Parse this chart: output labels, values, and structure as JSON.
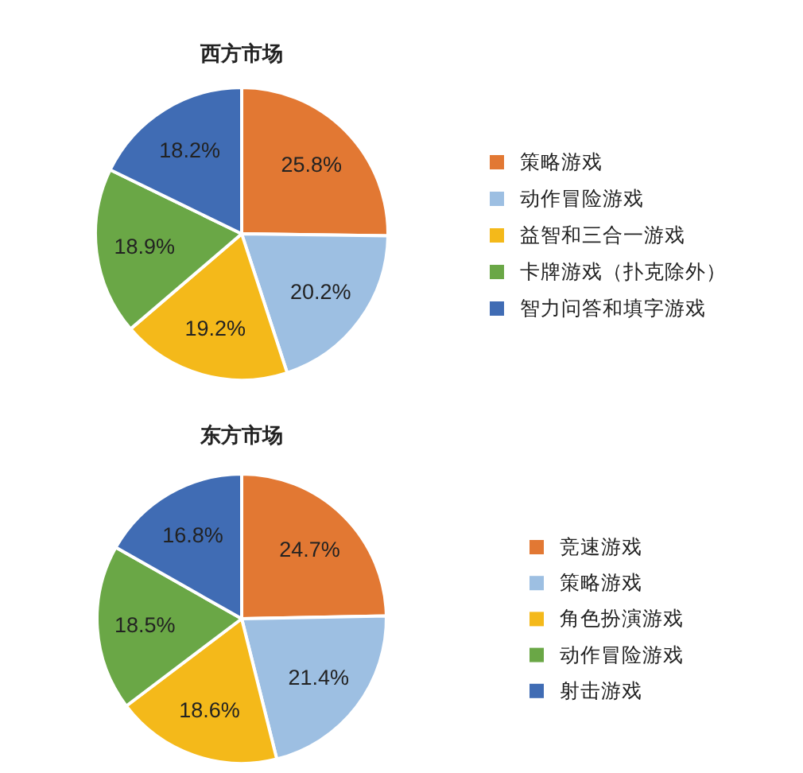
{
  "chart_data": [
    {
      "type": "pie",
      "title": "西方市场",
      "categories": [
        "策略游戏",
        "动作冒险游戏",
        "益智和三合一游戏",
        "卡牌游戏（扑克除外）",
        "智力问答和填字游戏"
      ],
      "values": [
        25.8,
        20.2,
        19.2,
        18.9,
        18.2
      ],
      "value_labels": [
        "25.8%",
        "20.2%",
        "19.2%",
        "18.9%",
        "18.2%"
      ],
      "colors": [
        "#e27833",
        "#9dbfe2",
        "#f4b91a",
        "#6aa746",
        "#406cb4"
      ],
      "legend": "right"
    },
    {
      "type": "pie",
      "title": "东方市场",
      "categories": [
        "竞速游戏",
        "策略游戏",
        "角色扮演游戏",
        "动作冒险游戏",
        "射击游戏"
      ],
      "values": [
        24.7,
        21.4,
        18.6,
        18.5,
        16.8
      ],
      "value_labels": [
        "24.7%",
        "21.4%",
        "18.6%",
        "18.5%",
        "16.8%"
      ],
      "colors": [
        "#e27833",
        "#9dbfe2",
        "#f4b91a",
        "#6aa746",
        "#406cb4"
      ],
      "legend": "right"
    }
  ]
}
